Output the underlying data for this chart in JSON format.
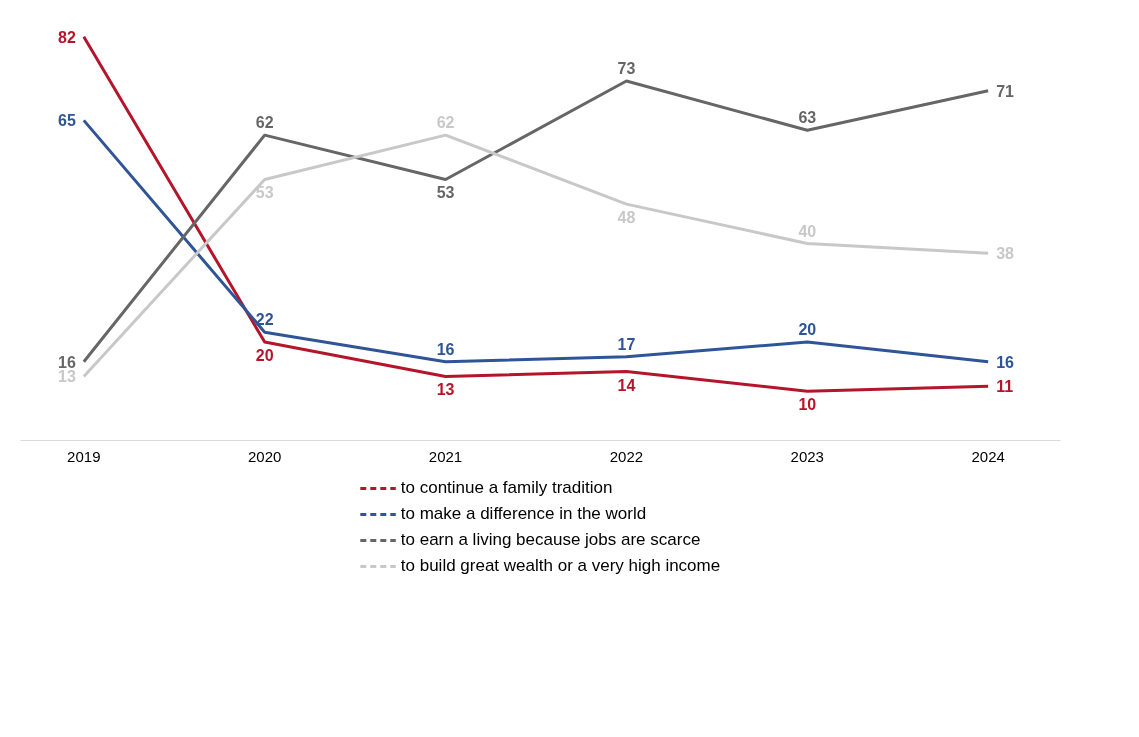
{
  "chart_data": {
    "type": "line",
    "categories": [
      "2019",
      "2020",
      "2021",
      "2022",
      "2023",
      "2024"
    ],
    "series": [
      {
        "name": "to continue a family tradition",
        "color": "#b5152b",
        "values": [
          82,
          20,
          13,
          14,
          10,
          11
        ]
      },
      {
        "name": "to make a difference in the world",
        "color": "#2f5597",
        "values": [
          65,
          22,
          16,
          17,
          20,
          16
        ]
      },
      {
        "name": "to earn a living because jobs are scarce",
        "color": "#666666",
        "values": [
          16,
          62,
          53,
          73,
          63,
          71
        ]
      },
      {
        "name": "to build great wealth or a very high income",
        "color": "#c8c8c8",
        "values": [
          13,
          53,
          62,
          48,
          40,
          38
        ]
      }
    ],
    "data_labels": true,
    "legend": "bottom",
    "line_style": "solid",
    "tick_labels": "x"
  }
}
